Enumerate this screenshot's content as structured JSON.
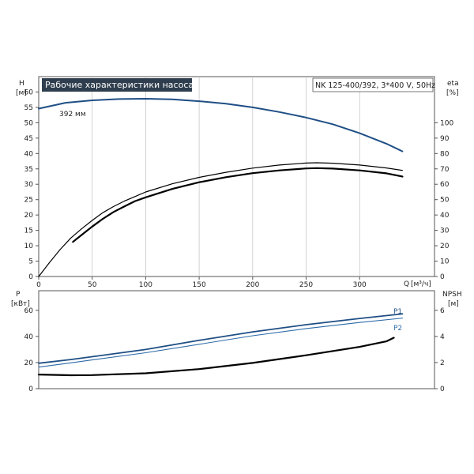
{
  "chart_data": [
    {
      "type": "line",
      "title": "Рабочие характеристики насоса",
      "subtitle": "NK 125-400/392, 3*400 V, 50Hz",
      "xlabel": "Q [м³/ч]",
      "x_axis_label": "Q",
      "x_unit": "[м³/ч]",
      "xlim": [
        0,
        370
      ],
      "xticks": [
        0,
        50,
        100,
        150,
        200,
        250,
        300
      ],
      "left_axis": {
        "label": "H",
        "unit": "[м]",
        "lim": [
          0,
          65
        ],
        "ticks": [
          0,
          5,
          10,
          15,
          20,
          25,
          30,
          35,
          40,
          45,
          50,
          55,
          60
        ]
      },
      "right_axis": {
        "label": "eta",
        "unit": "[%]",
        "lim": [
          0,
          130
        ],
        "ticks": [
          0,
          10,
          20,
          30,
          40,
          50,
          60,
          70,
          80,
          90,
          100
        ]
      },
      "grid": true,
      "series": [
        {
          "name": "392 мм",
          "axis": "left",
          "color": "#1f4e85",
          "points": [
            [
              0,
              54.6
            ],
            [
              25,
              56.5
            ],
            [
              50,
              57.3
            ],
            [
              75,
              57.7
            ],
            [
              100,
              57.8
            ],
            [
              125,
              57.6
            ],
            [
              150,
              57.0
            ],
            [
              175,
              56.2
            ],
            [
              200,
              55.0
            ],
            [
              225,
              53.5
            ],
            [
              250,
              51.7
            ],
            [
              275,
              49.5
            ],
            [
              300,
              46.6
            ],
            [
              325,
              43.2
            ],
            [
              340,
              40.7
            ]
          ]
        },
        {
          "axis": "right",
          "color": "#000000",
          "points": [
            [
              0,
              0
            ],
            [
              10,
              9
            ],
            [
              20,
              17.5
            ],
            [
              30,
              25
            ],
            [
              40,
              31
            ],
            [
              50,
              36.5
            ],
            [
              60,
              41.5
            ],
            [
              70,
              45.5
            ],
            [
              80,
              49
            ],
            [
              90,
              52
            ],
            [
              100,
              55
            ],
            [
              125,
              60.3
            ],
            [
              150,
              64.5
            ],
            [
              175,
              67.8
            ],
            [
              200,
              70.5
            ],
            [
              225,
              72.5
            ],
            [
              250,
              73.8
            ],
            [
              260,
              74.0
            ],
            [
              275,
              73.7
            ],
            [
              300,
              72.5
            ],
            [
              325,
              70.6
            ],
            [
              340,
              69.0
            ]
          ]
        },
        {
          "axis": "right",
          "color": "#000000",
          "points": [
            [
              32,
              22.5
            ],
            [
              40,
              27
            ],
            [
              50,
              32.5
            ],
            [
              60,
              37.5
            ],
            [
              70,
              42
            ],
            [
              80,
              45.5
            ],
            [
              90,
              49
            ],
            [
              100,
              51.5
            ],
            [
              125,
              57
            ],
            [
              150,
              61.3
            ],
            [
              175,
              64.6
            ],
            [
              200,
              67.2
            ],
            [
              225,
              69.0
            ],
            [
              250,
              70.3
            ],
            [
              260,
              70.5
            ],
            [
              275,
              70.2
            ],
            [
              300,
              69.0
            ],
            [
              325,
              67.1
            ],
            [
              340,
              65.0
            ]
          ]
        }
      ]
    },
    {
      "type": "line",
      "xlim": [
        0,
        370
      ],
      "left_axis": {
        "label": "P",
        "unit": "[кВт]",
        "lim": [
          0,
          75
        ],
        "ticks": [
          0,
          20,
          40,
          60
        ]
      },
      "right_axis": {
        "label": "NPSH",
        "unit": "[м]",
        "lim": [
          0,
          7.5
        ],
        "ticks": [
          0,
          2,
          4,
          6
        ]
      },
      "grid": false,
      "series": [
        {
          "name": "P1",
          "axis": "left",
          "color": "#1f4e85",
          "points": [
            [
              0,
              19.5
            ],
            [
              30,
              22.3
            ],
            [
              50,
              24.5
            ],
            [
              100,
              30
            ],
            [
              150,
              37
            ],
            [
              200,
              43.5
            ],
            [
              250,
              49
            ],
            [
              300,
              53.8
            ],
            [
              340,
              57.3
            ]
          ]
        },
        {
          "name": "P2",
          "axis": "left",
          "color": "#2c6aa8",
          "points": [
            [
              0,
              16.5
            ],
            [
              30,
              19.8
            ],
            [
              50,
              22
            ],
            [
              100,
              27.5
            ],
            [
              150,
              34
            ],
            [
              200,
              40.5
            ],
            [
              250,
              46
            ],
            [
              300,
              50.7
            ],
            [
              340,
              54.0
            ]
          ]
        },
        {
          "axis": "right",
          "color": "#000000",
          "points": [
            [
              0,
              1.08
            ],
            [
              30,
              1.03
            ],
            [
              50,
              1.04
            ],
            [
              100,
              1.18
            ],
            [
              150,
              1.5
            ],
            [
              200,
              1.97
            ],
            [
              250,
              2.56
            ],
            [
              300,
              3.2
            ],
            [
              325,
              3.62
            ],
            [
              332,
              3.9
            ]
          ]
        }
      ]
    }
  ]
}
